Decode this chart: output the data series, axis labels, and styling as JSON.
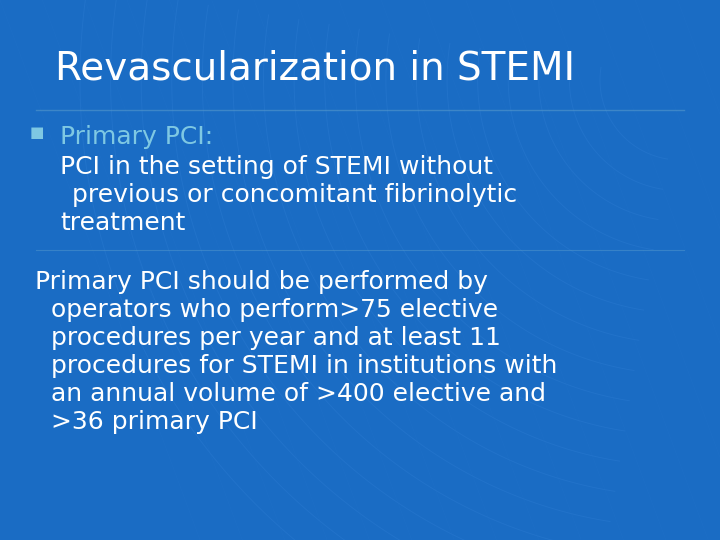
{
  "title": "Revascularization in STEMI",
  "title_color": "#ffffff",
  "title_fontsize": 28,
  "background_color": "#1a6cc4",
  "bullet_label": "Primary PCI:",
  "bullet_label_color": "#7ec8e3",
  "bullet_body_line1": "PCI in the setting of STEMI without",
  "bullet_body_line2": "previous or concomitant fibrinolytic",
  "bullet_body_line3": "treatment",
  "bullet_body_color": "#ffffff",
  "para_line1": "Primary PCI should be performed by",
  "para_line2": "  operators who perform>75 elective",
  "para_line3": "  procedures per year and at least 11",
  "para_line4": "  procedures for STEMI in institutions with",
  "para_line5": "  an annual volume of >400 elective and",
  "para_line6": "  >36 primary PCI",
  "paragraph_color": "#ffffff",
  "text_fontsize": 18,
  "font_family": "DejaVu Sans"
}
